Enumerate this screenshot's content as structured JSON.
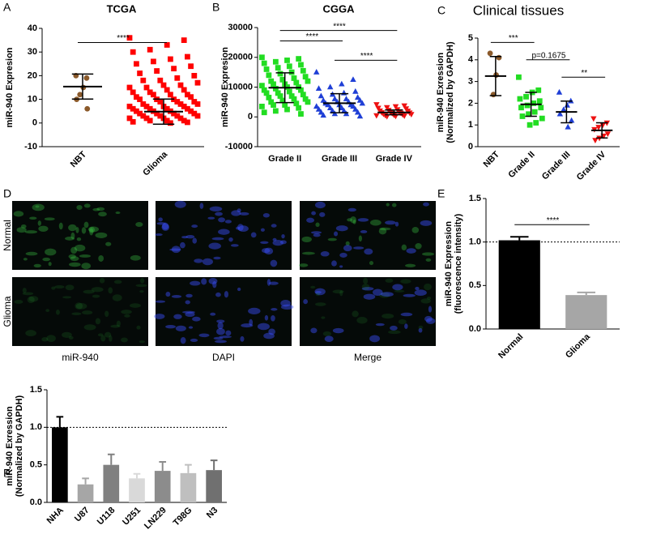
{
  "chart_data": [
    {
      "type": "dot",
      "panel_label": "A",
      "title": "TCGA",
      "ylabel": [
        "miR-940 Expresion"
      ],
      "ylim": [
        -10,
        40
      ],
      "yticks": [
        -10,
        0,
        10,
        20,
        30,
        40
      ],
      "rotate_labels": true,
      "groups": [
        {
          "category": "NBT",
          "marker": "circle",
          "color": "#8b5a2b",
          "mean": 15.4,
          "sd": 5.3,
          "values": [
            20,
            19,
            15,
            12,
            10,
            6
          ]
        },
        {
          "category": "Glioma",
          "marker": "square",
          "color": "#ff0000",
          "mean": 4.8,
          "sd": 5.3,
          "values": [
            36,
            35,
            33,
            31,
            30,
            28,
            27,
            26,
            25,
            24,
            23,
            22,
            21,
            20,
            19,
            18,
            18,
            17,
            16,
            16,
            15,
            15,
            14,
            14,
            13,
            13,
            12,
            12,
            12,
            11,
            11,
            10,
            10,
            10,
            9,
            9,
            9,
            8,
            8,
            8,
            7,
            7,
            7,
            7,
            6,
            6,
            6,
            6,
            5,
            5,
            5,
            5,
            4,
            4,
            4,
            4,
            3,
            3,
            3,
            3,
            2,
            2,
            2,
            2,
            1,
            1,
            1,
            0.5,
            0.3,
            0
          ]
        }
      ],
      "annotations": [
        {
          "text": "****",
          "from": 0,
          "to": 1,
          "y": 34
        }
      ]
    },
    {
      "type": "dot",
      "panel_label": "B",
      "title": "CGGA",
      "ylabel": [
        "miR-940 Expresion"
      ],
      "ylim": [
        -10000,
        30000
      ],
      "yticks": [
        -10000,
        0,
        10000,
        20000,
        30000
      ],
      "rotate_labels": false,
      "groups": [
        {
          "category": "Grade II",
          "marker": "square",
          "color": "#22dd22",
          "mean": 9800,
          "sd": 5000,
          "values": [
            20000,
            19500,
            19000,
            18500,
            18000,
            17500,
            17000,
            16500,
            16000,
            15500,
            15000,
            14500,
            14000,
            13500,
            13000,
            12500,
            12000,
            12000,
            11500,
            11000,
            11000,
            10500,
            10000,
            10000,
            9500,
            9000,
            9000,
            8500,
            8000,
            8000,
            7500,
            7000,
            7000,
            6500,
            6000,
            6000,
            5500,
            5000,
            5000,
            4500,
            4000,
            4000,
            3500,
            3000,
            2500,
            2000,
            1500,
            1000
          ]
        },
        {
          "category": "Grade III",
          "marker": "triangle",
          "color": "#1f3fd6",
          "mean": 4600,
          "sd": 3200,
          "values": [
            15000,
            12500,
            11000,
            10000,
            9500,
            8500,
            8000,
            7500,
            7000,
            6500,
            6000,
            6000,
            5500,
            5500,
            5000,
            5000,
            4500,
            4500,
            4000,
            4000,
            4000,
            3500,
            3500,
            3000,
            3000,
            2500,
            2500,
            2000,
            2000,
            1500,
            1500,
            1000,
            1000,
            500,
            200
          ]
        },
        {
          "category": "Grade IV",
          "marker": "triangle-down",
          "color": "#ee1111",
          "mean": 1500,
          "sd": 800,
          "values": [
            4200,
            3800,
            3500,
            3200,
            3000,
            2800,
            2500,
            2300,
            2100,
            2000,
            1800,
            1700,
            1500,
            1400,
            1300,
            1200,
            1000,
            900,
            800,
            700,
            600,
            500,
            400,
            300,
            200
          ]
        }
      ],
      "annotations": [
        {
          "text": "****",
          "from": 0,
          "to": 1,
          "y": 25500
        },
        {
          "text": "****",
          "from": 0,
          "to": 2,
          "y": 29000
        },
        {
          "text": "****",
          "from": 1,
          "to": 2,
          "y": 19000
        }
      ]
    },
    {
      "type": "dot",
      "panel_label": "C",
      "title": "Clinical tissues",
      "ylabel": [
        "miR-940 Exression",
        "(Normalized by GAPDH)"
      ],
      "ylim": [
        0,
        5
      ],
      "yticks": [
        0,
        1,
        2,
        3,
        4,
        5
      ],
      "rotate_labels": true,
      "groups": [
        {
          "category": "NBT",
          "marker": "circle",
          "color": "#8b5a2b",
          "mean": 3.25,
          "sd": 0.9,
          "values": [
            4.3,
            4.1,
            3.3,
            2.4
          ]
        },
        {
          "category": "Grade II",
          "marker": "square",
          "color": "#22dd22",
          "mean": 1.95,
          "sd": 0.55,
          "values": [
            3.2,
            2.6,
            2.5,
            2.3,
            2.2,
            2.1,
            2.0,
            1.9,
            1.8,
            1.8,
            1.6,
            1.5,
            1.4,
            1.3,
            1.1,
            1.0
          ]
        },
        {
          "category": "Grade III",
          "marker": "triangle",
          "color": "#1f3fd6",
          "mean": 1.6,
          "sd": 0.5,
          "values": [
            2.5,
            2.1,
            1.9,
            1.7,
            1.5,
            1.2,
            0.9
          ]
        },
        {
          "category": "Grade IV",
          "marker": "triangle-down",
          "color": "#ee1111",
          "mean": 0.75,
          "sd": 0.35,
          "values": [
            1.3,
            1.1,
            1.0,
            0.9,
            0.8,
            0.6,
            0.5,
            0.4,
            0.3
          ]
        }
      ],
      "annotations": [
        {
          "text": "***",
          "from": 0,
          "to": 1,
          "y": 4.8
        },
        {
          "text": "p=0.1675",
          "from": 1,
          "to": 2,
          "y": 4.0
        },
        {
          "text": "**",
          "from": 2,
          "to": 3,
          "y": 3.2
        }
      ]
    },
    {
      "type": "images",
      "panel_label": "D",
      "row_labels": [
        "Normal",
        "Glioma"
      ],
      "column_labels": [
        "miR-940",
        "DAPI",
        "Merge"
      ]
    },
    {
      "type": "bar",
      "panel_label": "E",
      "ylabel": [
        "miR-940 Expression",
        "(fluorescence intensity)"
      ],
      "ylim": [
        0,
        1.5
      ],
      "yticks": [
        {
          "value": 0,
          "label": "0.0"
        },
        0.5,
        {
          "value": 1,
          "label": "1.0"
        },
        1.5
      ],
      "rotate_labels": true,
      "categories": [
        "Normal",
        "Glioma"
      ],
      "values": [
        1.02,
        0.39
      ],
      "errors": [
        0.04,
        0.03
      ],
      "colors": [
        "#000000",
        "#a6a6a6"
      ],
      "reference_line": 1,
      "annotations": [
        {
          "text": "****",
          "from": 0,
          "to": 1,
          "y": 1.2
        }
      ]
    },
    {
      "type": "bar",
      "panel_label": "F",
      "ylabel": [
        "miR-940 Exression",
        "(Normalized by GAPDH)"
      ],
      "ylim": [
        0,
        1.5
      ],
      "yticks": [
        {
          "value": 0,
          "label": "0.0"
        },
        0.5,
        {
          "value": 1,
          "label": "1.0"
        },
        1.5
      ],
      "rotate_labels": true,
      "categories": [
        "NHA",
        "U87",
        "U118",
        "U251",
        "LN229",
        "T98G",
        "N3"
      ],
      "values": [
        1.0,
        0.24,
        0.5,
        0.32,
        0.42,
        0.39,
        0.43
      ],
      "errors": [
        0.14,
        0.08,
        0.14,
        0.06,
        0.12,
        0.11,
        0.13
      ],
      "colors": [
        "#000000",
        "#a6a6a6",
        "#808080",
        "#d9d9d9",
        "#8c8c8c",
        "#bfbfbf",
        "#707070"
      ],
      "reference_line": 1,
      "annotations": []
    }
  ]
}
